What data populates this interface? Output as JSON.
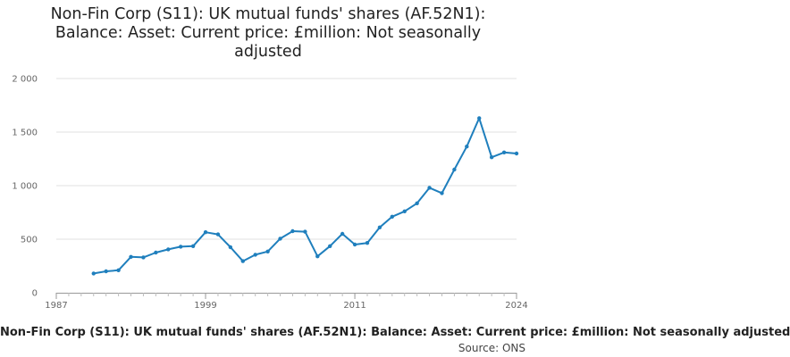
{
  "chart_data": {
    "type": "line",
    "title_lines": [
      "Non-Fin Corp (S11): UK mutual funds' shares (AF.52N1):",
      "Balance: Asset: Current price: £million: Not seasonally",
      "adjusted"
    ],
    "x_ticks": [
      1987,
      1999,
      2011,
      2024
    ],
    "y_ticks": [
      "0",
      "500",
      "1 000",
      "1 500",
      "2 000"
    ],
    "y_tick_values": [
      0,
      500,
      1000,
      1500,
      2000
    ],
    "xlim": [
      1987,
      2024
    ],
    "ylim": [
      0,
      2000
    ],
    "grid": true,
    "series": [
      {
        "name": "Non-Fin Corp (S11): UK mutual funds' shares (AF.52N1): Balance: Asset: Current price: £million: Not seasonally adjusted",
        "color": "#1f7fbd",
        "x": [
          1990,
          1991,
          1992,
          1993,
          1994,
          1995,
          1996,
          1997,
          1998,
          1999,
          2000,
          2001,
          2002,
          2003,
          2004,
          2005,
          2006,
          2007,
          2008,
          2009,
          2010,
          2011,
          2012,
          2013,
          2014,
          2015,
          2016,
          2017,
          2018,
          2019,
          2020,
          2021,
          2022,
          2023,
          2024
        ],
        "y": [
          180,
          200,
          210,
          335,
          330,
          375,
          405,
          430,
          435,
          565,
          545,
          425,
          295,
          355,
          385,
          505,
          575,
          570,
          340,
          435,
          550,
          450,
          465,
          610,
          710,
          760,
          835,
          980,
          930,
          1150,
          1365,
          1630,
          1265,
          1310,
          1300
        ]
      }
    ]
  },
  "legend_label": "Non-Fin Corp (S11): UK mutual funds' shares (AF.52N1): Balance: Asset: Current price: £million: Not seasonally adjusted",
  "source_label": "Source: ONS"
}
